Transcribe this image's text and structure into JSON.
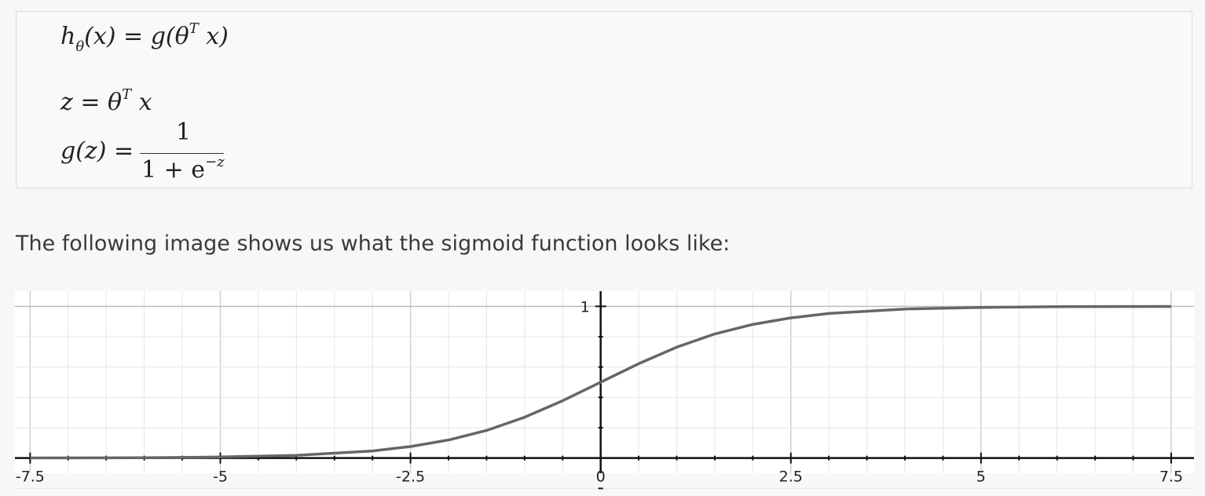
{
  "formulas": {
    "line1": {
      "h": "h",
      "theta": "θ",
      "rest": "(x) = g(θ",
      "sup": "T",
      "end": " x)"
    },
    "line2": {
      "lhs": "z = θ",
      "sup": "T",
      "end": " x"
    },
    "line3": {
      "lhs": "g(z) =",
      "num": "1",
      "den": "1 + e",
      "den_sup": "−z"
    }
  },
  "caption": "The following image shows us what the sigmoid function looks like:",
  "chart_data": {
    "type": "line",
    "function": "sigmoid",
    "x_ticks": [
      -7.5,
      -5,
      -2.5,
      0,
      2.5,
      5,
      7.5
    ],
    "x_tick_labels": [
      "-7.5",
      "-5",
      "-2.5",
      "0",
      "2.5",
      "5",
      "7.5"
    ],
    "y_ticks": [
      1
    ],
    "y_tick_labels": [
      "1"
    ],
    "xlim": [
      -7.7,
      7.8
    ],
    "ylim": [
      -0.1,
      1.1
    ],
    "grid": true,
    "series": [
      {
        "x": [
          -7.5,
          -6,
          -5,
          -4,
          -3,
          -2.5,
          -2,
          -1.5,
          -1,
          -0.5,
          0,
          0.5,
          1,
          1.5,
          2,
          2.5,
          3,
          4,
          5,
          6,
          7.5
        ],
        "y": [
          0.001,
          0.002,
          0.007,
          0.018,
          0.047,
          0.076,
          0.119,
          0.182,
          0.269,
          0.378,
          0.5,
          0.622,
          0.731,
          0.818,
          0.881,
          0.924,
          0.953,
          0.982,
          0.993,
          0.998,
          0.999
        ]
      }
    ],
    "colors": {
      "curve": "#666666",
      "axis": "#111111",
      "grid": "#e6e6e6"
    }
  }
}
